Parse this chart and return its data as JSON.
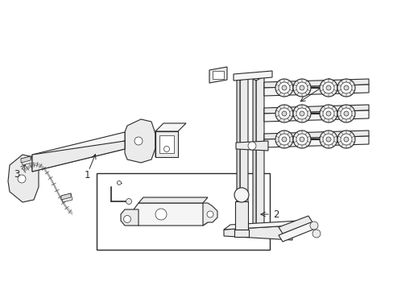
{
  "background_color": "#ffffff",
  "line_color": "#2a2a2a",
  "fill_light": "#f5f5f5",
  "fill_mid": "#ebebeb",
  "fill_dark": "#d8d8d8",
  "figsize": [
    4.89,
    3.6
  ],
  "dpi": 100,
  "lw_main": 0.8,
  "lw_thin": 0.5,
  "lw_thick": 1.2
}
